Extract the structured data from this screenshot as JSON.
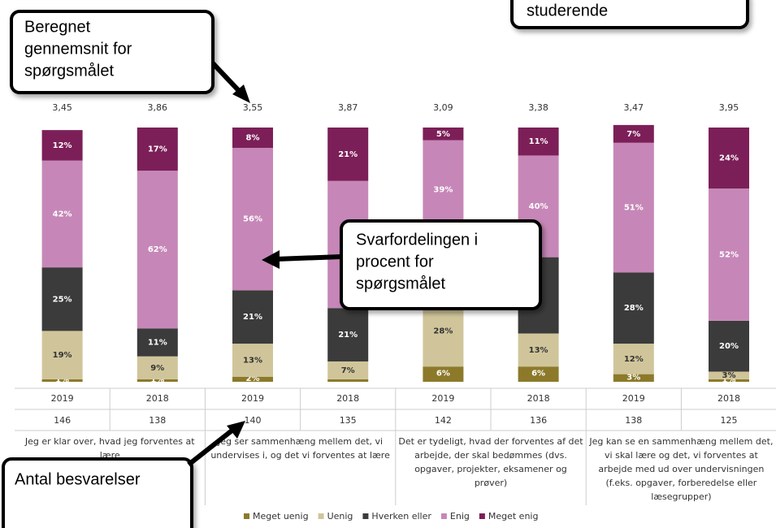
{
  "chart_data": {
    "type": "stacked_bar",
    "categories": [
      "2019",
      "2018",
      "2019",
      "2018",
      "2019",
      "2018",
      "2019",
      "2018"
    ],
    "counts": [
      146,
      138,
      140,
      135,
      142,
      136,
      138,
      125
    ],
    "averages": {
      "values": [
        3.45,
        3.86,
        3.55,
        3.87,
        3.09,
        3.38,
        3.47,
        3.95
      ],
      "value_labels": [
        "3,45",
        "3,86",
        "3,55",
        "3,87",
        "3,09",
        "3,38",
        "3,47",
        "3,95"
      ]
    },
    "ylim": [
      0,
      100
    ],
    "series": [
      {
        "name": "Meget uenig",
        "color": "#8c7a2a",
        "values": [
          1,
          1,
          2,
          1,
          6,
          6,
          3,
          1
        ],
        "value_labels": [
          "1%",
          "1%",
          "2%",
          null,
          "6%",
          "6%",
          "3%",
          "1%"
        ]
      },
      {
        "name": "Uenig",
        "color": "#d0c59a",
        "values": [
          19,
          9,
          13,
          7,
          28,
          13,
          12,
          3
        ],
        "value_labels": [
          "19%",
          "9%",
          "13%",
          "7%",
          "28%",
          "13%",
          "12%",
          "3%"
        ]
      },
      {
        "name": "Hverken eller",
        "color": "#3b3b3b",
        "values": [
          25,
          11,
          21,
          21,
          22,
          30,
          28,
          20
        ],
        "value_labels": [
          "25%",
          "11%",
          "21%",
          "21%",
          null,
          null,
          "28%",
          "20%"
        ]
      },
      {
        "name": "Enig",
        "color": "#c687b8",
        "values": [
          42,
          62,
          56,
          50,
          39,
          40,
          51,
          52
        ],
        "value_labels": [
          "42%",
          "62%",
          "56%",
          null,
          "39%",
          "40%",
          "51%",
          "52%"
        ]
      },
      {
        "name": "Meget enig",
        "color": "#7c1f58",
        "values": [
          12,
          17,
          8,
          21,
          5,
          11,
          7,
          24
        ],
        "value_labels": [
          "12%",
          "17%",
          "8%",
          "21%",
          "5%",
          "11%",
          "7%",
          "24%"
        ]
      }
    ],
    "questions": [
      {
        "lines": [
          "Jeg er klar over, hvad jeg forventes at",
          "lære"
        ]
      },
      {
        "lines": [
          "Jeg ser sammenhæng mellem det, vi",
          "undervises i, og det vi forventes at lære"
        ]
      },
      {
        "lines": [
          "Det er tydeligt, hvad der forventes af det",
          "arbejde, der skal bedømmes (dvs.",
          "opgaver, projekter, eksamener og",
          "prøver)"
        ]
      },
      {
        "lines": [
          "Jeg kan se en sammenhæng mellem det,",
          "vi skal lære og det, vi forventes at",
          "arbejde med ud over undervisningen",
          "(f.eks. opgaver, forberedelse eller",
          "læsegrupper)"
        ]
      }
    ]
  },
  "callouts": [
    {
      "lines": [
        "Beregnet",
        "gennemsnit for",
        "spørgsmålet"
      ]
    },
    {
      "lines": [
        "studerende"
      ]
    },
    {
      "lines": [
        "Svarfordelingen i",
        "procent for",
        "spørgsmålet"
      ]
    },
    {
      "lines": [
        "Antal besvarelser"
      ]
    }
  ]
}
